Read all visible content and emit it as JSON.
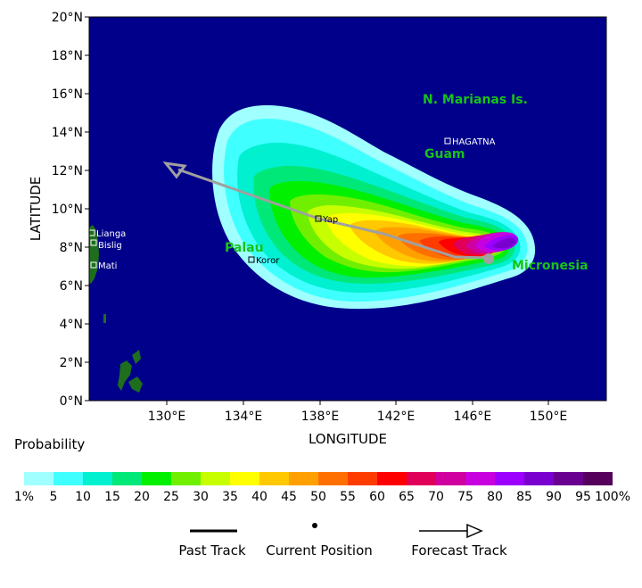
{
  "map": {
    "lat_labels": [
      "20°N",
      "18°N",
      "16°N",
      "14°N",
      "12°N",
      "10°N",
      "8°N",
      "6°N",
      "4°N",
      "2°N",
      "0°N"
    ],
    "lon_labels": [
      "130°E",
      "134°E",
      "138°E",
      "142°E",
      "146°E",
      "150°E"
    ],
    "xlabel": "LONGITUDE",
    "ylabel": "LATITUDE",
    "ocean_color": "#00008b",
    "land_color": "#1e6e1e",
    "place_labels": [
      "N. Marianas Is.",
      "Guam",
      "Palau",
      "Micronesia"
    ],
    "cities": [
      "HAGATNA",
      "Yap",
      "Koror",
      "Lianga",
      "Bislig",
      "Mati"
    ]
  },
  "legend": {
    "title": "Probability",
    "colors": [
      "#a0ffff",
      "#40ffff",
      "#00f0d0",
      "#00e878",
      "#00f000",
      "#70f000",
      "#c8ff00",
      "#ffff00",
      "#ffc800",
      "#ffa000",
      "#ff7000",
      "#ff3c00",
      "#ff0000",
      "#e0005a",
      "#d000a0",
      "#c800e0",
      "#9c00ff",
      "#7a00d0",
      "#6a0090",
      "#55005a"
    ],
    "labels": [
      "1%",
      "5",
      "10",
      "15",
      "20",
      "25",
      "30",
      "35",
      "40",
      "45",
      "50",
      "55",
      "60",
      "65",
      "70",
      "75",
      "80",
      "85",
      "90",
      "95",
      "100%"
    ]
  },
  "key": {
    "past_track": "Past Track",
    "current_position": "Current Position",
    "forecast_track": "Forecast Track"
  }
}
